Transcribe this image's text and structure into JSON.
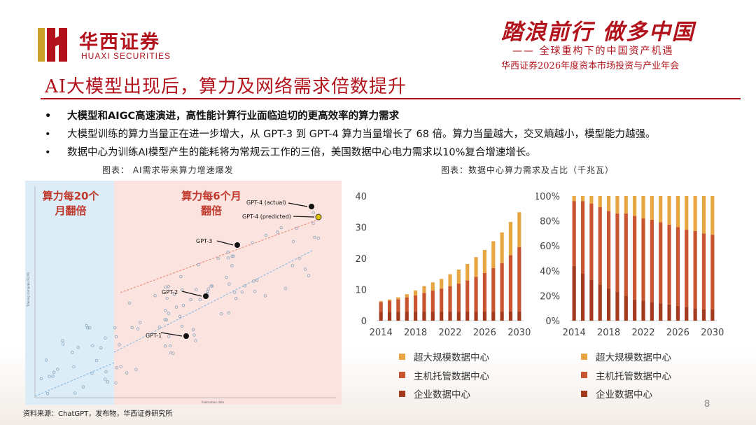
{
  "header": {
    "logo_cn": "华西证券",
    "logo_en": "HUAXI SECURITIES",
    "conf_title": "踏浪前行 做多中国",
    "conf_subtitle": "—— 全球重构下的中国资产机遇",
    "conf_subtitle2": "华西证券2026年度资本市场投资与产业年会"
  },
  "title": "AI大模型出现后，算力及网络需求倍数提升",
  "bullets": [
    {
      "dot": "•",
      "text": "大模型和AIGC高速演进，高性能计算行业面临迫切的更高效率的算力需求"
    },
    {
      "dot": "•",
      "text": "大模型训练的算力当量正在进一步增大，从 GPT-3 到 GPT-4 算力当量增长了 68 倍。算力当量越大，交叉熵越小，模型能力越强。"
    },
    {
      "dot": "•",
      "text": "数据中心为训练AI模型产生的能耗将为常规云工作的三倍，美国数据中心电力需求以10%复合增速增长。"
    }
  ],
  "captions": {
    "left": "图表： AI需求带来算力增速爆发",
    "right": "图表：数据中心算力需求及占比（千兆瓦）"
  },
  "left_chart": {
    "zone_blue_label": "算力每20个月翻倍",
    "zone_red_label": "算力每6个月翻倍",
    "annotations": [
      "GPT-4 (actual)",
      "GPT-4 (predicted)",
      "GPT-3",
      "GPT-2",
      "GPT-1"
    ],
    "y_axis_label": "Training compute (FLOP)",
    "x_axis_label": "Publication date"
  },
  "chart_data": [
    {
      "type": "bar",
      "stacked": true,
      "categories": [
        "2014",
        "2015",
        "2016",
        "2017",
        "2018",
        "2019",
        "2020",
        "2021",
        "2022",
        "2023",
        "2024",
        "2025",
        "2026",
        "2027",
        "2028",
        "2029",
        "2030"
      ],
      "x_ticks": [
        "2014",
        "2018",
        "2022",
        "2026",
        "2030"
      ],
      "ylim": [
        0,
        40
      ],
      "y_ticks": [
        "0",
        "10",
        "20",
        "30",
        "40"
      ],
      "grid": false,
      "legend_position": "bottom",
      "series": [
        {
          "name": "企业数据中心",
          "color": "#a33a1e",
          "values": [
            2.8,
            2.8,
            2.9,
            2.9,
            2.9,
            2.9,
            2.9,
            2.9,
            2.9,
            2.9,
            2.9,
            2.9,
            2.9,
            2.9,
            2.9,
            3.0,
            3.0
          ]
        },
        {
          "name": "主机托管数据中心",
          "color": "#c8552f",
          "values": [
            3.2,
            3.6,
            4.0,
            4.6,
            5.2,
            6.0,
            6.8,
            7.4,
            8.2,
            9.0,
            10.0,
            11.2,
            12.4,
            14.0,
            15.6,
            18.0,
            20.6
          ]
        },
        {
          "name": "超大规模数据中心",
          "color": "#e8a642",
          "values": [
            0.3,
            0.4,
            0.6,
            1.0,
            1.6,
            2.2,
            2.6,
            3.1,
            3.8,
            4.5,
            5.3,
            6.3,
            7.4,
            8.6,
            9.8,
            10.7,
            11.2
          ]
        }
      ]
    },
    {
      "type": "bar",
      "stacked": true,
      "percent": true,
      "categories": [
        "2014",
        "2015",
        "2016",
        "2017",
        "2018",
        "2019",
        "2020",
        "2021",
        "2022",
        "2023",
        "2024",
        "2025",
        "2026",
        "2027",
        "2028",
        "2029",
        "2030"
      ],
      "x_ticks": [
        "2014",
        "2018",
        "2022",
        "2026",
        "2030"
      ],
      "ylim": [
        0,
        100
      ],
      "y_ticks": [
        "0%",
        "20%",
        "40%",
        "60%",
        "80%",
        "100%"
      ],
      "grid": false,
      "legend_position": "bottom",
      "series": [
        {
          "name": "企业数据中心",
          "color": "#a33a1e",
          "values": [
            44,
            38,
            33,
            29,
            26,
            23,
            20,
            17,
            16,
            15,
            14,
            13,
            12,
            11,
            10,
            9,
            9
          ]
        },
        {
          "name": "主机托管数据中心",
          "color": "#c8552f",
          "values": [
            52,
            58,
            61,
            62,
            62,
            63,
            66,
            67,
            66,
            66,
            65,
            64,
            63,
            62,
            62,
            61,
            60
          ]
        },
        {
          "name": "超大规模数据中心",
          "color": "#e8a642",
          "values": [
            4,
            4,
            6,
            9,
            12,
            14,
            14,
            16,
            18,
            19,
            21,
            23,
            25,
            27,
            28,
            30,
            31
          ]
        }
      ]
    }
  ],
  "legend_labels": [
    "超大规模数据中心",
    "主机托管数据中心",
    "企业数据中心"
  ],
  "legend_colors": [
    "#e8a642",
    "#c8552f",
    "#a33a1e"
  ],
  "source": "资料来源：ChatGPT，发布物，华西证券研究所",
  "page_number": "8"
}
